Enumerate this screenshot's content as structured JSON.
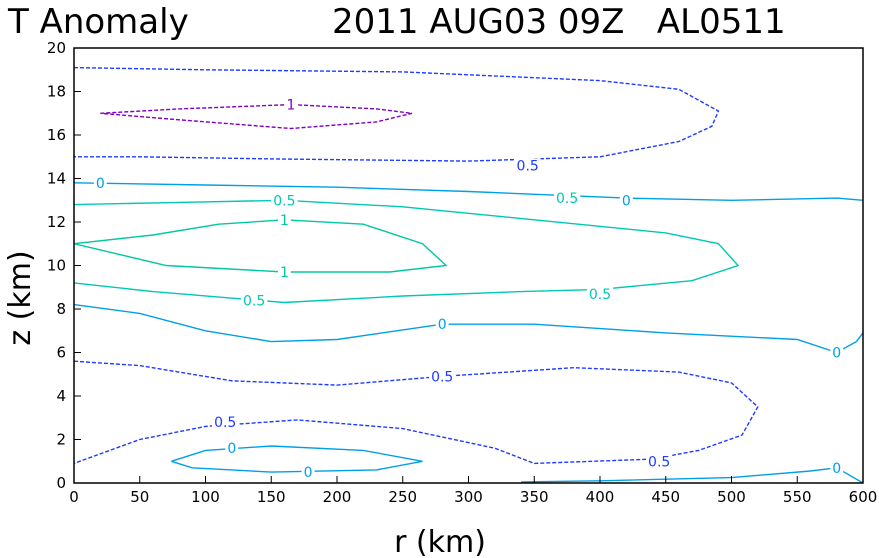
{
  "chart_data": {
    "type": "contour",
    "title_left": "T Anomaly",
    "title_right": "2011 AUG03 09Z   AL0511",
    "xlabel": "r (km)",
    "ylabel": "z (km)",
    "xlim": [
      0,
      600
    ],
    "ylim": [
      0,
      20
    ],
    "xticks": [
      0,
      50,
      100,
      150,
      200,
      250,
      300,
      350,
      400,
      450,
      500,
      550,
      600
    ],
    "yticks": [
      0,
      2,
      4,
      6,
      8,
      10,
      12,
      14,
      16,
      18,
      20
    ],
    "colors": {
      "c_neg1": "#8000c0",
      "c_neg05": "#1e3cff",
      "c_zero": "#00a0e6",
      "c_pos05": "#00c8b4",
      "c_pos1": "#00c8a0"
    },
    "contours": [
      {
        "level": "-1",
        "color_key": "c_neg1",
        "dashed": true,
        "points": [
          [
            20,
            17.0
          ],
          [
            80,
            17.2
          ],
          [
            165,
            17.4
          ],
          [
            230,
            17.2
          ],
          [
            257,
            17.0
          ],
          [
            230,
            16.6
          ],
          [
            165,
            16.3
          ],
          [
            80,
            16.7
          ],
          [
            20,
            17.0
          ]
        ],
        "label": {
          "text": "1",
          "r": 165,
          "z": 17.4
        }
      },
      {
        "level": "-0.5",
        "color_key": "c_neg05",
        "dashed": true,
        "points": [
          [
            0,
            19.1
          ],
          [
            100,
            19.0
          ],
          [
            250,
            18.9
          ],
          [
            400,
            18.5
          ],
          [
            460,
            18.1
          ],
          [
            490,
            17.1
          ],
          [
            485,
            16.4
          ],
          [
            460,
            15.7
          ],
          [
            400,
            15.0
          ],
          [
            300,
            14.8
          ],
          [
            150,
            14.9
          ],
          [
            50,
            15.0
          ],
          [
            0,
            15.0
          ]
        ],
        "label": {
          "text": "0.5",
          "r": 345,
          "z": 14.6
        }
      },
      {
        "level": "0",
        "color_key": "c_zero",
        "dashed": false,
        "points": [
          [
            0,
            13.8
          ],
          [
            100,
            13.7
          ],
          [
            200,
            13.6
          ],
          [
            300,
            13.4
          ],
          [
            420,
            13.1
          ],
          [
            500,
            13.0
          ],
          [
            580,
            13.1
          ],
          [
            600,
            13.0
          ]
        ],
        "label": {
          "text": "0",
          "r": 420,
          "z": 13.0
        }
      },
      {
        "level": "0.5",
        "color_key": "c_pos05",
        "dashed": false,
        "points": [
          [
            0,
            12.8
          ],
          [
            80,
            12.9
          ],
          [
            160,
            13.0
          ],
          [
            250,
            12.7
          ],
          [
            350,
            12.1
          ],
          [
            450,
            11.5
          ],
          [
            490,
            11.0
          ],
          [
            505,
            10.0
          ],
          [
            470,
            9.3
          ],
          [
            400,
            8.9
          ],
          [
            340,
            8.8
          ],
          [
            250,
            8.6
          ],
          [
            160,
            8.3
          ],
          [
            60,
            8.8
          ],
          [
            0,
            9.2
          ]
        ],
        "label": {
          "text": "0.5",
          "r": 160,
          "z": 13.0
        }
      },
      {
        "level": "1",
        "color_key": "c_pos1",
        "dashed": false,
        "points": [
          [
            0,
            11.0
          ],
          [
            60,
            11.4
          ],
          [
            110,
            11.9
          ],
          [
            160,
            12.1
          ],
          [
            220,
            11.9
          ],
          [
            265,
            11.0
          ],
          [
            283,
            10.0
          ],
          [
            240,
            9.7
          ],
          [
            160,
            9.7
          ],
          [
            70,
            10.0
          ],
          [
            0,
            11.0
          ]
        ],
        "label": {
          "text": "1",
          "r": 160,
          "z": 12.1
        }
      },
      {
        "level": "0",
        "color_key": "c_zero",
        "dashed": false,
        "points": [
          [
            0,
            8.2
          ],
          [
            50,
            7.8
          ],
          [
            100,
            7.0
          ],
          [
            150,
            6.5
          ],
          [
            200,
            6.6
          ],
          [
            280,
            7.3
          ],
          [
            350,
            7.3
          ],
          [
            450,
            6.9
          ],
          [
            550,
            6.6
          ],
          [
            580,
            6.0
          ],
          [
            595,
            6.5
          ],
          [
            600,
            6.9
          ]
        ],
        "label": {
          "text": "0",
          "r": 280,
          "z": 7.3
        }
      },
      {
        "level": "-0.5",
        "color_key": "c_neg05",
        "dashed": true,
        "points": [
          [
            0,
            5.6
          ],
          [
            50,
            5.4
          ],
          [
            120,
            4.7
          ],
          [
            200,
            4.5
          ],
          [
            280,
            4.9
          ],
          [
            380,
            5.3
          ],
          [
            460,
            5.1
          ],
          [
            500,
            4.6
          ],
          [
            520,
            3.5
          ],
          [
            508,
            2.2
          ],
          [
            475,
            1.5
          ],
          [
            440,
            1.1
          ],
          [
            350,
            0.9
          ],
          [
            320,
            1.6
          ],
          [
            250,
            2.5
          ],
          [
            170,
            2.9
          ],
          [
            100,
            2.6
          ],
          [
            50,
            2.0
          ],
          [
            0,
            0.9
          ]
        ],
        "label": {
          "text": "0.5",
          "r": 280,
          "z": 4.9
        }
      },
      {
        "level": "0",
        "color_key": "c_zero",
        "dashed": false,
        "points": [
          [
            74,
            1.0
          ],
          [
            100,
            1.5
          ],
          [
            150,
            1.7
          ],
          [
            220,
            1.5
          ],
          [
            265,
            1.0
          ],
          [
            230,
            0.6
          ],
          [
            150,
            0.5
          ],
          [
            90,
            0.7
          ],
          [
            74,
            1.0
          ]
        ],
        "label": {
          "text": "0",
          "r": 120,
          "z": 1.6
        }
      },
      {
        "level": "0",
        "color_key": "c_zero",
        "dashed": false,
        "points": [
          [
            340,
            0.05
          ],
          [
            400,
            0.1
          ],
          [
            500,
            0.25
          ],
          [
            560,
            0.55
          ],
          [
            580,
            0.7
          ],
          [
            600,
            0.0
          ]
        ],
        "label": {
          "text": "0",
          "r": 580,
          "z": 0.7
        }
      }
    ],
    "extra_labels": [
      {
        "text": "0.5",
        "r": 115,
        "z": 2.8,
        "color_key": "c_neg05"
      },
      {
        "text": "0",
        "r": 178,
        "z": 0.5,
        "color_key": "c_zero"
      },
      {
        "text": "0.5",
        "r": 445,
        "z": 1.0,
        "color_key": "c_neg05"
      },
      {
        "text": "0.5",
        "r": 375,
        "z": 13.1,
        "color_key": "c_pos05"
      },
      {
        "text": "0.5",
        "r": 137,
        "z": 8.4,
        "color_key": "c_pos05"
      },
      {
        "text": "0.5",
        "r": 400,
        "z": 8.7,
        "color_key": "c_pos05"
      },
      {
        "text": "1",
        "r": 160,
        "z": 9.7,
        "color_key": "c_pos1"
      },
      {
        "text": "0",
        "r": 20,
        "z": 13.8,
        "color_key": "c_zero"
      },
      {
        "text": "0",
        "r": 580,
        "z": 6.0,
        "color_key": "c_zero"
      }
    ]
  }
}
